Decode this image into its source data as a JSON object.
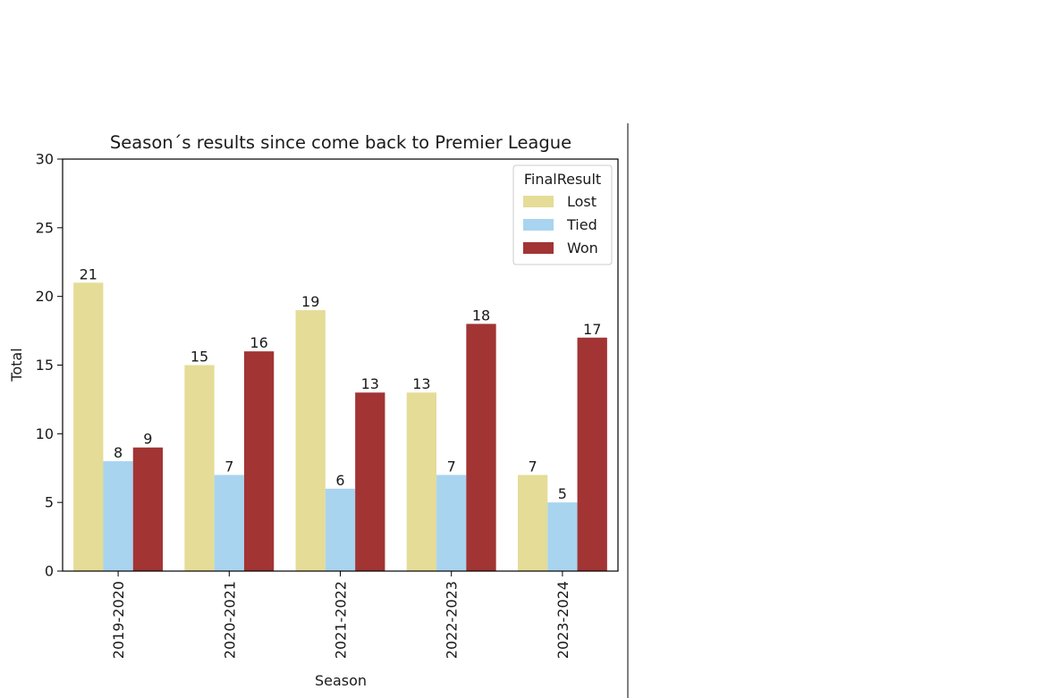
{
  "chart_data": {
    "type": "bar",
    "title": "Season´s results since come back to Premier League",
    "xlabel": "Season",
    "ylabel": "Total",
    "categories": [
      "2019-2020",
      "2020-2021",
      "2021-2022",
      "2022-2023",
      "2023-2024"
    ],
    "series": [
      {
        "name": "Lost",
        "values": [
          21,
          15,
          19,
          13,
          7
        ],
        "color": "#e5dc97"
      },
      {
        "name": "Tied",
        "values": [
          8,
          7,
          6,
          7,
          5
        ],
        "color": "#a8d4f0"
      },
      {
        "name": "Won",
        "values": [
          9,
          16,
          13,
          18,
          17
        ],
        "color": "#a23434"
      }
    ],
    "ylim": [
      0,
      30
    ],
    "yticks": [
      0,
      5,
      10,
      15,
      20,
      25,
      30
    ],
    "legend": {
      "title": "FinalResult",
      "position": "top-right"
    },
    "grid": false
  }
}
